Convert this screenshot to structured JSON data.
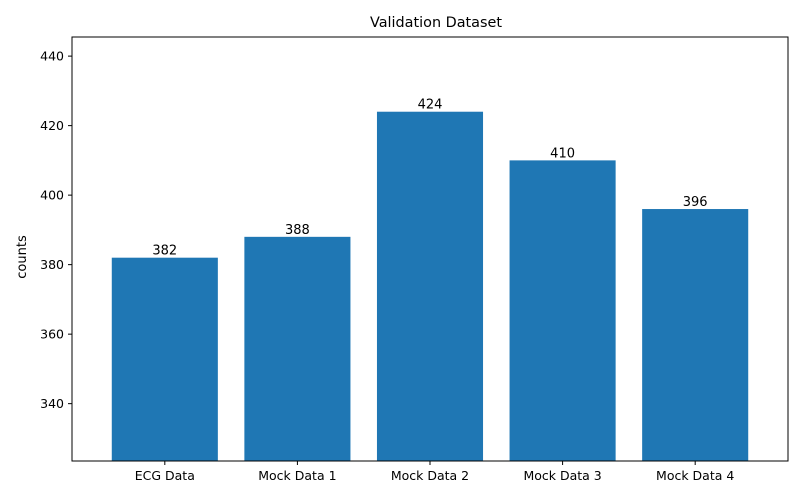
{
  "chart_data": {
    "type": "bar",
    "title": "Validation Dataset",
    "xlabel": "",
    "ylabel": "counts",
    "categories": [
      "ECG Data",
      "Mock Data 1",
      "Mock Data 2",
      "Mock Data 3",
      "Mock Data 4"
    ],
    "values": [
      382,
      388,
      424,
      410,
      396
    ],
    "ylim": [
      323.5,
      445.5
    ],
    "yticks": [
      340,
      360,
      380,
      400,
      420,
      440
    ],
    "bar_color": "#1f77b4",
    "grid": false,
    "legend": "none"
  }
}
